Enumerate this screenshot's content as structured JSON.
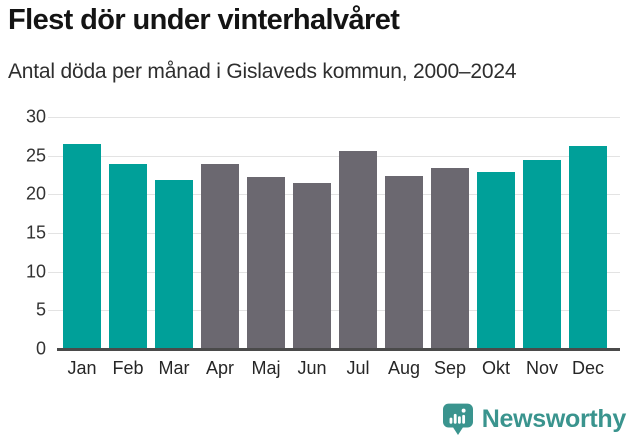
{
  "title": "Flest dör under vinterhalvåret",
  "subtitle": "Antal döda per månad i Gislaveds kommun, 2000–2024",
  "chart_data": {
    "type": "bar",
    "title": "Flest dör under vinterhalvåret",
    "subtitle": "Antal döda per månad i Gislaveds kommun, 2000–2024",
    "categories": [
      "Jan",
      "Feb",
      "Mar",
      "Apr",
      "Maj",
      "Jun",
      "Jul",
      "Aug",
      "Sep",
      "Okt",
      "Nov",
      "Dec"
    ],
    "values": [
      26.5,
      23.9,
      21.8,
      23.9,
      22.3,
      21.5,
      25.6,
      22.4,
      23.4,
      22.9,
      24.4,
      26.3
    ],
    "highlighted": [
      true,
      true,
      true,
      false,
      false,
      false,
      false,
      false,
      false,
      true,
      true,
      true
    ],
    "xlabel": "",
    "ylabel": "",
    "ylim": [
      0,
      30
    ],
    "yticks": [
      0,
      5,
      10,
      15,
      20,
      25,
      30
    ],
    "grid": true,
    "legend": "none",
    "colors": {
      "highlight": "#00a099",
      "default": "#6b6870",
      "gridline": "#e3e3e3",
      "axis": "#4a4a4a"
    }
  },
  "branding": {
    "logo_text": "Newsworthy",
    "logo_color": "#3a948e",
    "logo_icon": "bar-chart-bubble-icon"
  }
}
